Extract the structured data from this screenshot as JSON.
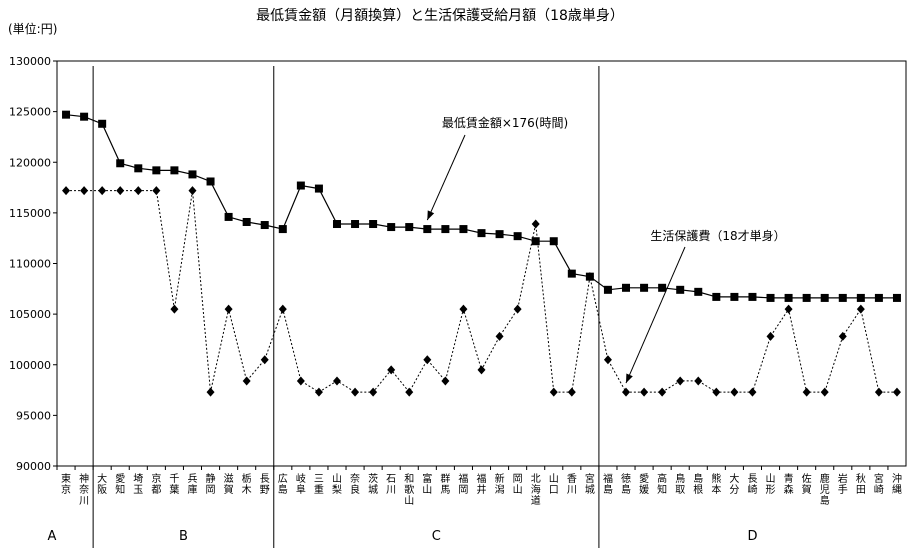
{
  "chart_data": {
    "type": "line",
    "title": "最低賃金額（月額換算）と生活保護受給月額（18歳単身）",
    "unit_label": "(単位:円)",
    "ylim": [
      90000,
      130000
    ],
    "yticks": [
      90000,
      95000,
      100000,
      105000,
      110000,
      115000,
      120000,
      125000,
      130000
    ],
    "grid": false,
    "categories": [
      [
        "東",
        "京"
      ],
      [
        "神",
        "奈",
        "川"
      ],
      [
        "大",
        "阪"
      ],
      [
        "愛",
        "知"
      ],
      [
        "埼",
        "玉"
      ],
      [
        "京",
        "都"
      ],
      [
        "千",
        "葉"
      ],
      [
        "兵",
        "庫"
      ],
      [
        "静",
        "岡"
      ],
      [
        "滋",
        "賀"
      ],
      [
        "栃",
        "木"
      ],
      [
        "長",
        "野"
      ],
      [
        "広",
        "島"
      ],
      [
        "岐",
        "阜"
      ],
      [
        "三",
        "重"
      ],
      [
        "山",
        "梨"
      ],
      [
        "奈",
        "良"
      ],
      [
        "茨",
        "城"
      ],
      [
        "石",
        "川"
      ],
      [
        "和",
        "歌",
        "山"
      ],
      [
        "富",
        "山"
      ],
      [
        "群",
        "馬"
      ],
      [
        "福",
        "岡"
      ],
      [
        "福",
        "井"
      ],
      [
        "新",
        "潟"
      ],
      [
        "岡",
        "山"
      ],
      [
        "北",
        "海",
        "道"
      ],
      [
        "山",
        "口"
      ],
      [
        "香",
        "川"
      ],
      [
        "宮",
        "城"
      ],
      [
        "福",
        "島"
      ],
      [
        "徳",
        "島"
      ],
      [
        "愛",
        "媛"
      ],
      [
        "高",
        "知"
      ],
      [
        "鳥",
        "取"
      ],
      [
        "島",
        "根"
      ],
      [
        "熊",
        "本"
      ],
      [
        "大",
        "分"
      ],
      [
        "長",
        "崎"
      ],
      [
        "山",
        "形"
      ],
      [
        "青",
        "森"
      ],
      [
        "佐",
        "賀"
      ],
      [
        "鹿",
        "児",
        "島"
      ],
      [
        "岩",
        "手"
      ],
      [
        "秋",
        "田"
      ],
      [
        "宮",
        "崎"
      ],
      [
        "沖",
        "縄"
      ]
    ],
    "groups": [
      {
        "label": "A",
        "start": 0,
        "end": 1
      },
      {
        "label": "B",
        "start": 2,
        "end": 11
      },
      {
        "label": "C",
        "start": 12,
        "end": 29
      },
      {
        "label": "D",
        "start": 30,
        "end": 46
      }
    ],
    "series": [
      {
        "name": "最低賃金額×176(時間)",
        "style": "solid",
        "marker": "square",
        "color": "#000000",
        "values": [
          124700,
          124500,
          123800,
          119900,
          119400,
          119200,
          119200,
          118800,
          118100,
          114600,
          114100,
          113800,
          113400,
          117700,
          117400,
          113900,
          113900,
          113900,
          113600,
          113600,
          113400,
          113400,
          113400,
          113000,
          112900,
          112700,
          112200,
          112200,
          109000,
          108700,
          107400,
          107600,
          107600,
          107600,
          107400,
          107200,
          106700,
          106700,
          106700,
          106600,
          106600,
          106600,
          106600,
          106600,
          106600,
          106600,
          106600
        ]
      },
      {
        "name": "生活保護費(18才単身)",
        "style": "dotted",
        "marker": "diamond",
        "color": "#000000",
        "values": [
          117200,
          117200,
          117200,
          117200,
          117200,
          117200,
          105500,
          117200,
          97300,
          105500,
          98400,
          100500,
          105500,
          98400,
          97300,
          98400,
          97300,
          97300,
          99500,
          97300,
          100500,
          98400,
          105500,
          99500,
          102800,
          105500,
          113900,
          97300,
          97300,
          108700,
          100500,
          97300,
          97300,
          97300,
          98400,
          98400,
          97300,
          97300,
          97300,
          102800,
          105500,
          97300,
          97300,
          102800,
          105500,
          97300,
          97300
        ]
      }
    ],
    "annotations": [
      {
        "text": "最低賃金額×176(時間)",
        "series": 0
      },
      {
        "text": "生活保護費（18才単身）",
        "series": 1
      }
    ]
  }
}
